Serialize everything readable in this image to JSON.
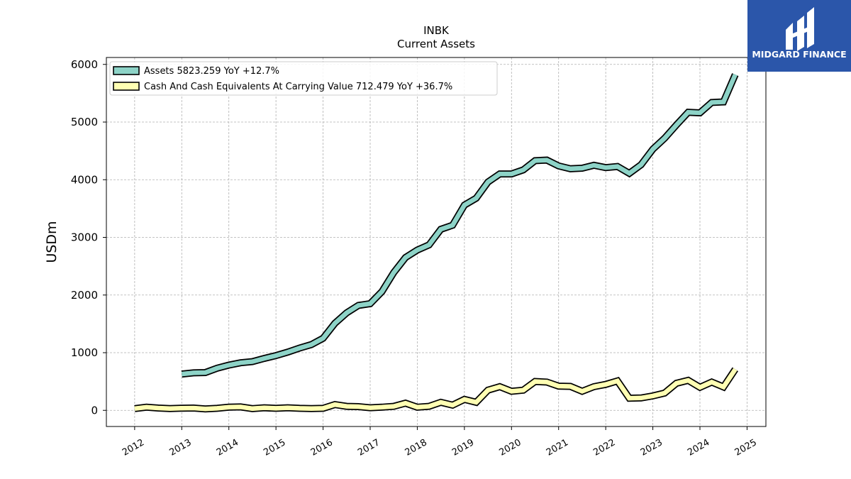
{
  "chart_data": {
    "type": "line",
    "title": "INBK",
    "subtitle": "Current  Assets",
    "ylabel": "USDm",
    "xlabel": "",
    "ylim": [
      -280,
      6120
    ],
    "xlim": [
      2011.4,
      2025.4
    ],
    "yticks": [
      0,
      1000,
      2000,
      3000,
      4000,
      5000,
      6000
    ],
    "xticks": [
      "2012",
      "2013",
      "2014",
      "2015",
      "2016",
      "2017",
      "2018",
      "2019",
      "2020",
      "2021",
      "2022",
      "2023",
      "2024",
      "2025"
    ],
    "grid": true,
    "legend_position": "top-left",
    "series": [
      {
        "name": "Assets",
        "legend_label": "Assets  5823.259 YoY +12.7%",
        "color": "#8dd3c7",
        "x": [
          2013.0,
          2013.25,
          2013.5,
          2013.75,
          2014.0,
          2014.25,
          2014.5,
          2014.75,
          2015.0,
          2015.25,
          2015.5,
          2015.75,
          2016.0,
          2016.25,
          2016.5,
          2016.75,
          2017.0,
          2017.25,
          2017.5,
          2017.75,
          2018.0,
          2018.25,
          2018.5,
          2018.75,
          2019.0,
          2019.25,
          2019.5,
          2019.75,
          2020.0,
          2020.25,
          2020.5,
          2020.75,
          2021.0,
          2021.25,
          2021.5,
          2021.75,
          2022.0,
          2022.25,
          2022.5,
          2022.75,
          2023.0,
          2023.25,
          2023.5,
          2023.75,
          2024.0,
          2024.25,
          2024.5,
          2024.75
        ],
        "y": [
          630,
          650,
          655,
          730,
          785,
          825,
          845,
          900,
          950,
          1010,
          1080,
          1140,
          1250,
          1510,
          1690,
          1820,
          1850,
          2060,
          2390,
          2650,
          2780,
          2870,
          3140,
          3210,
          3560,
          3680,
          3960,
          4100,
          4100,
          4170,
          4330,
          4340,
          4240,
          4190,
          4200,
          4250,
          4210,
          4230,
          4110,
          4260,
          4530,
          4720,
          4950,
          5170,
          5160,
          5340,
          5350,
          5823
        ]
      },
      {
        "name": "Cash And Cash Equivalents At Carrying Value",
        "legend_label": "Cash And Cash Equivalents At Carrying Value  712.479 YoY +36.7%",
        "color": "#ffffb3",
        "x": [
          2012.0,
          2012.25,
          2012.5,
          2012.75,
          2013.0,
          2013.25,
          2013.5,
          2013.75,
          2014.0,
          2014.25,
          2014.5,
          2014.75,
          2015.0,
          2015.25,
          2015.5,
          2015.75,
          2016.0,
          2016.25,
          2016.5,
          2016.75,
          2017.0,
          2017.25,
          2017.5,
          2017.75,
          2018.0,
          2018.25,
          2018.5,
          2018.75,
          2019.0,
          2019.25,
          2019.5,
          2019.75,
          2020.0,
          2020.25,
          2020.5,
          2020.75,
          2021.0,
          2021.25,
          2021.5,
          2021.75,
          2022.0,
          2022.25,
          2022.5,
          2022.75,
          2023.0,
          2023.25,
          2023.5,
          2023.75,
          2024.0,
          2024.25,
          2024.5,
          2024.75
        ],
        "y": [
          30,
          55,
          40,
          30,
          38,
          40,
          25,
          35,
          55,
          60,
          30,
          45,
          35,
          45,
          35,
          30,
          35,
          100,
          70,
          65,
          45,
          55,
          70,
          125,
          55,
          70,
          140,
          90,
          190,
          140,
          350,
          410,
          330,
          350,
          500,
          490,
          420,
          415,
          330,
          410,
          450,
          510,
          210,
          215,
          250,
          300,
          470,
          520,
          400,
          490,
          405,
          712
        ]
      }
    ]
  },
  "logo": {
    "name": "MIDGARD FINANCE",
    "bg_color": "#2b56aa"
  }
}
